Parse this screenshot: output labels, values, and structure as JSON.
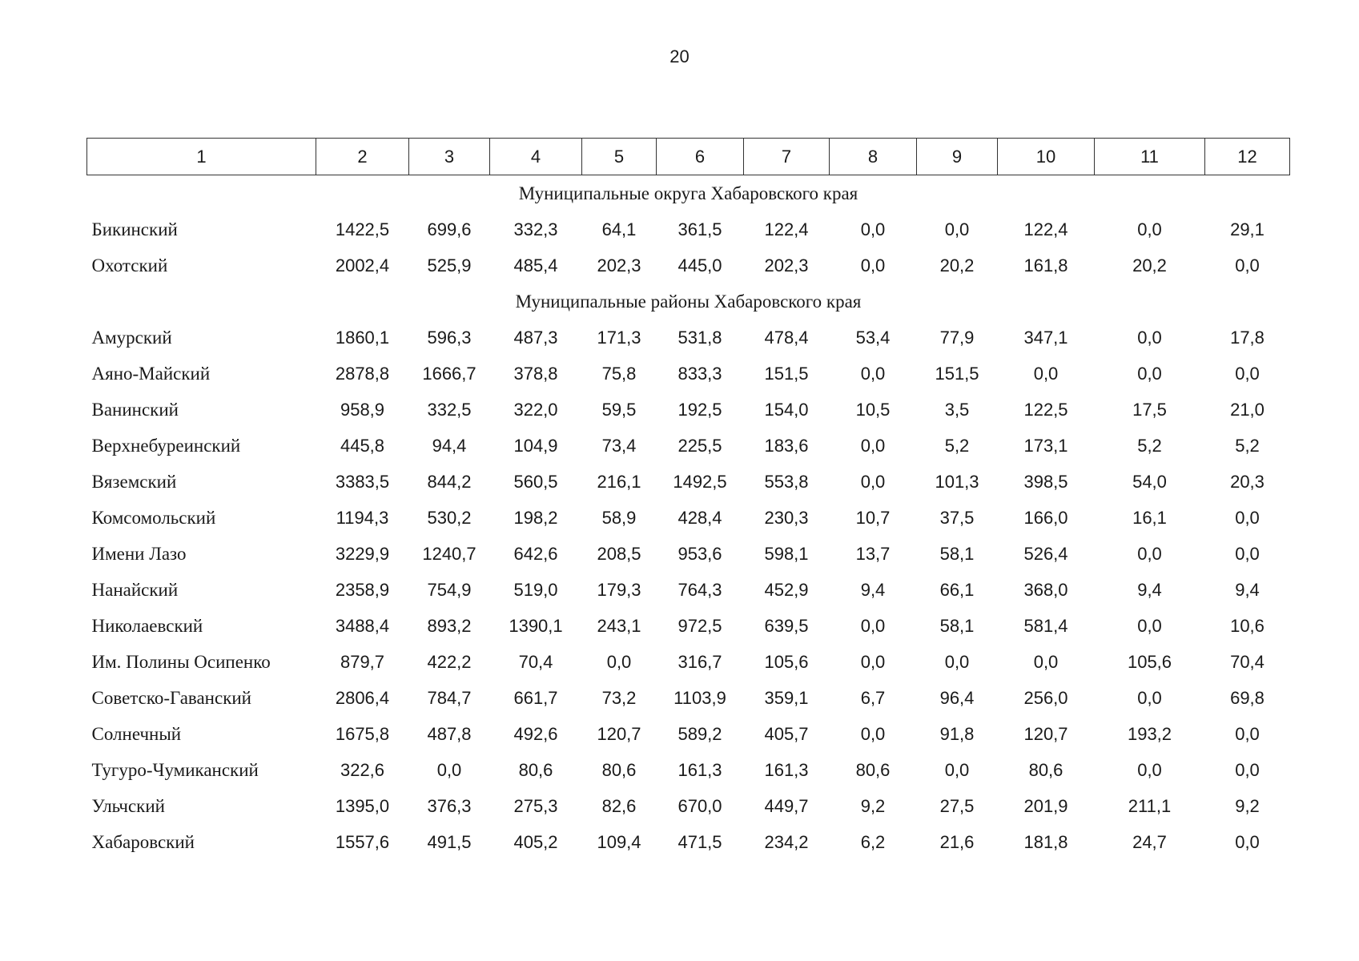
{
  "page_number": "20",
  "columns": [
    "1",
    "2",
    "3",
    "4",
    "5",
    "6",
    "7",
    "8",
    "9",
    "10",
    "11",
    "12"
  ],
  "sections": [
    {
      "title": "Муниципальные округа Хабаровского края",
      "rows": [
        {
          "name": "Бикинский",
          "values": [
            "1422,5",
            "699,6",
            "332,3",
            "64,1",
            "361,5",
            "122,4",
            "0,0",
            "0,0",
            "122,4",
            "0,0",
            "29,1"
          ]
        },
        {
          "name": "Охотский",
          "values": [
            "2002,4",
            "525,9",
            "485,4",
            "202,3",
            "445,0",
            "202,3",
            "0,0",
            "20,2",
            "161,8",
            "20,2",
            "0,0"
          ]
        }
      ]
    },
    {
      "title": "Муниципальные районы Хабаровского края",
      "rows": [
        {
          "name": "Амурский",
          "values": [
            "1860,1",
            "596,3",
            "487,3",
            "171,3",
            "531,8",
            "478,4",
            "53,4",
            "77,9",
            "347,1",
            "0,0",
            "17,8"
          ]
        },
        {
          "name": "Аяно-Майский",
          "values": [
            "2878,8",
            "1666,7",
            "378,8",
            "75,8",
            "833,3",
            "151,5",
            "0,0",
            "151,5",
            "0,0",
            "0,0",
            "0,0"
          ]
        },
        {
          "name": "Ванинский",
          "values": [
            "958,9",
            "332,5",
            "322,0",
            "59,5",
            "192,5",
            "154,0",
            "10,5",
            "3,5",
            "122,5",
            "17,5",
            "21,0"
          ]
        },
        {
          "name": "Верхнебуреинский",
          "values": [
            "445,8",
            "94,4",
            "104,9",
            "73,4",
            "225,5",
            "183,6",
            "0,0",
            "5,2",
            "173,1",
            "5,2",
            "5,2"
          ]
        },
        {
          "name": "Вяземский",
          "values": [
            "3383,5",
            "844,2",
            "560,5",
            "216,1",
            "1492,5",
            "553,8",
            "0,0",
            "101,3",
            "398,5",
            "54,0",
            "20,3"
          ]
        },
        {
          "name": "Комсомольский",
          "values": [
            "1194,3",
            "530,2",
            "198,2",
            "58,9",
            "428,4",
            "230,3",
            "10,7",
            "37,5",
            "166,0",
            "16,1",
            "0,0"
          ]
        },
        {
          "name": "Имени Лазо",
          "values": [
            "3229,9",
            "1240,7",
            "642,6",
            "208,5",
            "953,6",
            "598,1",
            "13,7",
            "58,1",
            "526,4",
            "0,0",
            "0,0"
          ]
        },
        {
          "name": "Нанайский",
          "values": [
            "2358,9",
            "754,9",
            "519,0",
            "179,3",
            "764,3",
            "452,9",
            "9,4",
            "66,1",
            "368,0",
            "9,4",
            "9,4"
          ]
        },
        {
          "name": "Николаевский",
          "values": [
            "3488,4",
            "893,2",
            "1390,1",
            "243,1",
            "972,5",
            "639,5",
            "0,0",
            "58,1",
            "581,4",
            "0,0",
            "10,6"
          ]
        },
        {
          "name": "Им. Полины Осипенко",
          "values": [
            "879,7",
            "422,2",
            "70,4",
            "0,0",
            "316,7",
            "105,6",
            "0,0",
            "0,0",
            "0,0",
            "105,6",
            "70,4"
          ]
        },
        {
          "name": "Советско-Гаванский",
          "values": [
            "2806,4",
            "784,7",
            "661,7",
            "73,2",
            "1103,9",
            "359,1",
            "6,7",
            "96,4",
            "256,0",
            "0,0",
            "69,8"
          ]
        },
        {
          "name": "Солнечный",
          "values": [
            "1675,8",
            "487,8",
            "492,6",
            "120,7",
            "589,2",
            "405,7",
            "0,0",
            "91,8",
            "120,7",
            "193,2",
            "0,0"
          ]
        },
        {
          "name": "Тугуро-Чумиканский",
          "values": [
            "322,6",
            "0,0",
            "80,6",
            "80,6",
            "161,3",
            "161,3",
            "80,6",
            "0,0",
            "80,6",
            "0,0",
            "0,0"
          ]
        },
        {
          "name": "Ульчский",
          "values": [
            "1395,0",
            "376,3",
            "275,3",
            "82,6",
            "670,0",
            "449,7",
            "9,2",
            "27,5",
            "201,9",
            "211,1",
            "9,2"
          ]
        },
        {
          "name": "Хабаровский",
          "values": [
            "1557,6",
            "491,5",
            "405,2",
            "109,4",
            "471,5",
            "234,2",
            "6,2",
            "21,6",
            "181,8",
            "24,7",
            "0,0"
          ]
        }
      ]
    }
  ]
}
